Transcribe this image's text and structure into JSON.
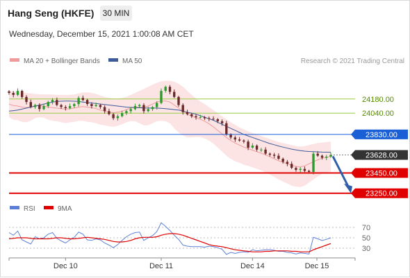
{
  "header": {
    "title": "Hang Seng (HKFE)",
    "timeframe": "30 MIN",
    "datetime": "Wednesday, December 15, 2021 1:00:08 AM CET"
  },
  "legend": {
    "ma20_bollinger": "MA 20 + Bollinger Bands",
    "ma50": "MA 50",
    "rsi": "RSI",
    "ma9": "9MA",
    "credit": "Research © 2021 Trading Central"
  },
  "colors": {
    "up_candle": "#2e9a2e",
    "down_candle": "#6b2a2a",
    "bollinger_band": "#fbd9d9",
    "ma20": "#f19a9a",
    "ma50": "#3d5a99",
    "rsi": "#5b7fd6",
    "rsi_ma9": "#e00000",
    "resistance": "#99cc44",
    "pivot": "#1a5fd6",
    "support": "#e00000",
    "last_price_tag": "#333333"
  },
  "chart_data": [
    {
      "type": "candlestick",
      "series_names": [
        "MA 20 + Bollinger Bands",
        "MA 50"
      ],
      "x_ticks": [
        "Dec 10",
        "Dec 11",
        "Dec 14",
        "Dec 15"
      ],
      "levels": [
        {
          "value": 24180.0,
          "label": "24180.00",
          "kind": "resistance"
        },
        {
          "value": 24040.0,
          "label": "24040.00",
          "kind": "resistance"
        },
        {
          "value": 23830.0,
          "label": "23830.00",
          "kind": "pivot"
        },
        {
          "value": 23628.0,
          "label": "23628.00",
          "kind": "last"
        },
        {
          "value": 23450.0,
          "label": "23450.00",
          "kind": "support"
        },
        {
          "value": 23250.0,
          "label": "23250.00",
          "kind": "support"
        }
      ],
      "forecast_arrow": {
        "from": 23628.0,
        "to": 23250.0
      },
      "ylim": [
        23200,
        24500
      ],
      "close": [
        24240,
        24220,
        24260,
        24200,
        24150,
        24100,
        24120,
        24080,
        24110,
        24150,
        24170,
        24120,
        24100,
        24090,
        24110,
        24130,
        24190,
        24170,
        24130,
        24110,
        24120,
        24100,
        24060,
        24030,
        23990,
        24010,
        24040,
        24060,
        24080,
        24110,
        24120,
        24060,
        24080,
        24100,
        24140,
        24260,
        24300,
        24250,
        24200,
        24120,
        24050,
        24030,
        24010,
        24000,
        24000,
        23990,
        23985,
        23980,
        23960,
        23940,
        23830,
        23800,
        23780,
        23770,
        23760,
        23700,
        23720,
        23680,
        23680,
        23640,
        23630,
        23620,
        23590,
        23560,
        23540,
        23500,
        23480,
        23490,
        23470,
        23460,
        23640,
        23620,
        23600,
        23610,
        23628
      ],
      "ma20": [
        24130,
        24115,
        24110,
        24100,
        24095,
        24100,
        24110,
        24115,
        24110,
        24100,
        24095,
        24090,
        24085,
        24080,
        24085,
        24090,
        24100,
        24105,
        24100,
        24095,
        24085,
        24070,
        24060,
        24050,
        24045,
        24050,
        24060,
        24075,
        24090,
        24100,
        24100,
        24100,
        24110,
        24130,
        24150,
        24160,
        24160,
        24150,
        24120,
        24090,
        24060,
        24030,
        24010,
        23995,
        23980,
        23960,
        23935,
        23905,
        23870,
        23835,
        23800,
        23770,
        23745,
        23725,
        23705,
        23690,
        23675,
        23660,
        23645,
        23628,
        23610,
        23590,
        23570,
        23555,
        23540,
        23525,
        23515,
        23510,
        23520,
        23540,
        23560,
        23580,
        23595,
        23605,
        23612
      ],
      "ma50": [
        24060,
        24065,
        24070,
        24080,
        24090,
        24100,
        24110,
        24120,
        24130,
        24140,
        24150,
        24155,
        24158,
        24160,
        24160,
        24158,
        24155,
        24150,
        24145,
        24140,
        24135,
        24130,
        24125,
        24120,
        24115,
        24110,
        24105,
        24100,
        24097,
        24095,
        24093,
        24091,
        24090,
        24090,
        24090,
        24088,
        24085,
        24080,
        24075,
        24070,
        24060,
        24050,
        24040,
        24030,
        24015,
        24000,
        23985,
        23970,
        23950,
        23930,
        23910,
        23890,
        23870,
        23850,
        23830,
        23815,
        23800,
        23785,
        23770,
        23755,
        23740,
        23728,
        23716,
        23705,
        23695,
        23685,
        23677,
        23670,
        23665,
        23662,
        23660,
        23658,
        23656,
        23655,
        23654
      ],
      "bb_upper": [
        24260,
        24255,
        24250,
        24245,
        24240,
        24235,
        24230,
        24228,
        24225,
        24225,
        24225,
        24220,
        24220,
        24220,
        24220,
        24225,
        24235,
        24245,
        24245,
        24240,
        24230,
        24215,
        24200,
        24190,
        24185,
        24185,
        24190,
        24200,
        24220,
        24240,
        24260,
        24280,
        24300,
        24320,
        24340,
        24355,
        24360,
        24360,
        24350,
        24330,
        24300,
        24260,
        24220,
        24185,
        24155,
        24130,
        24100,
        24070,
        24040,
        24010,
        23980,
        23950,
        23925,
        23900,
        23880,
        23860,
        23845,
        23830,
        23815,
        23800,
        23785,
        23770,
        23755,
        23745,
        23735,
        23725,
        23715,
        23710,
        23715,
        23725,
        23735,
        23745,
        23750,
        23755,
        23760
      ],
      "bb_lower": [
        24000,
        23975,
        23970,
        23955,
        23950,
        23965,
        23990,
        24000,
        23995,
        23975,
        23965,
        23960,
        23950,
        23940,
        23950,
        23955,
        23965,
        23965,
        23955,
        23950,
        23940,
        23925,
        23920,
        23910,
        23905,
        23915,
        23930,
        23950,
        23960,
        23960,
        23940,
        23920,
        23920,
        23940,
        23960,
        23965,
        23960,
        23940,
        23890,
        23850,
        23820,
        23800,
        23800,
        23805,
        23805,
        23790,
        23770,
        23740,
        23700,
        23660,
        23620,
        23590,
        23565,
        23550,
        23530,
        23520,
        23505,
        23490,
        23475,
        23456,
        23435,
        23410,
        23385,
        23365,
        23345,
        23325,
        23315,
        23310,
        23325,
        23355,
        23385,
        23415,
        23440,
        23455,
        23464
      ]
    },
    {
      "type": "line",
      "title": "RSI",
      "series_names": [
        "RSI",
        "9MA"
      ],
      "y_ticks": [
        70,
        50,
        30
      ],
      "ylim": [
        10,
        90
      ],
      "rsi": [
        60,
        55,
        63,
        46,
        42,
        38,
        52,
        48,
        50,
        57,
        60,
        49,
        44,
        40,
        46,
        51,
        61,
        57,
        46,
        45,
        48,
        46,
        40,
        36,
        31,
        37,
        45,
        52,
        57,
        60,
        61,
        45,
        50,
        54,
        62,
        79,
        72,
        64,
        55,
        47,
        36,
        34,
        33,
        33,
        33,
        32,
        34,
        33,
        31,
        28,
        18,
        22,
        20,
        22,
        23,
        22,
        27,
        25,
        26,
        27,
        27,
        26,
        24,
        24,
        22,
        21,
        19,
        21,
        20,
        19,
        51,
        48,
        45,
        47,
        50
      ],
      "rsi_ma9": [
        48,
        49,
        50,
        50,
        50,
        49,
        48,
        48,
        48,
        48,
        49,
        50,
        50,
        49,
        48,
        48,
        49,
        50,
        51,
        50,
        49,
        48,
        47,
        45,
        43,
        42,
        42,
        43,
        45,
        48,
        50,
        51,
        51,
        51,
        52,
        55,
        57,
        58,
        58,
        57,
        55,
        52,
        49,
        46,
        43,
        40,
        37,
        35,
        34,
        33,
        31,
        29,
        27,
        26,
        25,
        24,
        23,
        23,
        23,
        24,
        24,
        25,
        25,
        25,
        25,
        24,
        24,
        23,
        23,
        23,
        27,
        30,
        33,
        36,
        39
      ]
    }
  ]
}
